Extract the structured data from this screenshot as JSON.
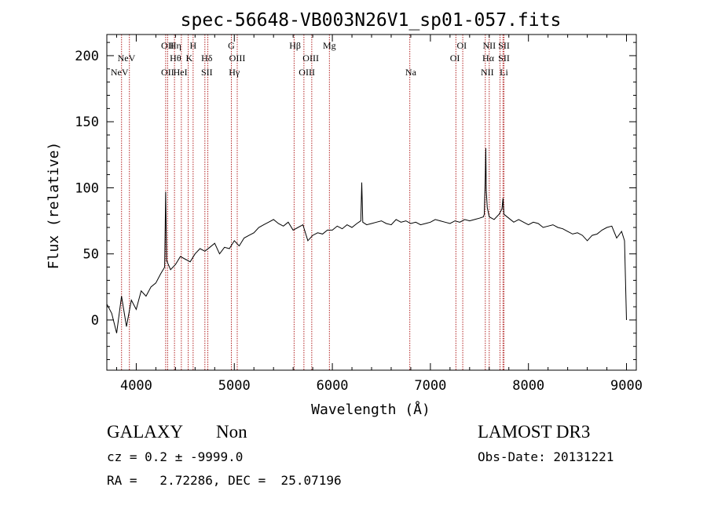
{
  "colors": {
    "spectrum": "#000000",
    "line_marker": "#b22222",
    "axis": "#000000",
    "background": "#ffffff"
  },
  "chart_data": {
    "type": "line",
    "title": "spec-56648-VB003N26V1_sp01-057.fits",
    "xlabel": "Wavelength (Å)",
    "ylabel": "Flux (relative)",
    "xlim": [
      3700,
      9100
    ],
    "ylim": [
      -38,
      216
    ],
    "xticks": [
      4000,
      5000,
      6000,
      7000,
      8000,
      9000
    ],
    "yticks": [
      0,
      50,
      100,
      150,
      200
    ],
    "series": [
      {
        "name": "flux",
        "x": [
          3700,
          3750,
          3800,
          3850,
          3900,
          3950,
          4000,
          4050,
          4100,
          4150,
          4200,
          4250,
          4290,
          4300,
          4310,
          4350,
          4400,
          4450,
          4500,
          4550,
          4600,
          4650,
          4700,
          4750,
          4800,
          4850,
          4900,
          4950,
          5000,
          5050,
          5100,
          5150,
          5200,
          5250,
          5300,
          5350,
          5400,
          5450,
          5500,
          5550,
          5600,
          5650,
          5700,
          5750,
          5800,
          5850,
          5900,
          5950,
          6000,
          6050,
          6100,
          6150,
          6200,
          6250,
          6290,
          6300,
          6310,
          6350,
          6400,
          6450,
          6500,
          6550,
          6600,
          6650,
          6700,
          6750,
          6800,
          6850,
          6900,
          6950,
          7000,
          7050,
          7100,
          7150,
          7200,
          7250,
          7300,
          7350,
          7400,
          7450,
          7500,
          7540,
          7550,
          7560,
          7565,
          7570,
          7580,
          7600,
          7650,
          7700,
          7730,
          7740,
          7750,
          7800,
          7850,
          7900,
          7950,
          8000,
          8050,
          8100,
          8150,
          8200,
          8250,
          8300,
          8350,
          8400,
          8450,
          8500,
          8550,
          8600,
          8650,
          8700,
          8750,
          8800,
          8850,
          8900,
          8950,
          8980,
          9000
        ],
        "values": [
          12,
          5,
          -10,
          18,
          -5,
          15,
          8,
          22,
          18,
          25,
          28,
          35,
          40,
          97,
          45,
          38,
          42,
          48,
          46,
          44,
          50,
          54,
          52,
          55,
          58,
          50,
          55,
          54,
          60,
          56,
          62,
          64,
          66,
          70,
          72,
          74,
          76,
          73,
          71,
          74,
          68,
          70,
          72,
          60,
          64,
          66,
          65,
          68,
          68,
          71,
          69,
          72,
          70,
          73,
          75,
          104,
          74,
          72,
          73,
          74,
          75,
          73,
          72,
          76,
          74,
          75,
          73,
          74,
          72,
          73,
          74,
          76,
          75,
          74,
          73,
          75,
          74,
          76,
          75,
          76,
          77,
          78,
          80,
          110,
          130,
          98,
          85,
          78,
          76,
          80,
          84,
          92,
          80,
          77,
          74,
          76,
          74,
          72,
          74,
          73,
          70,
          71,
          72,
          70,
          69,
          67,
          65,
          66,
          64,
          60,
          64,
          65,
          68,
          70,
          71,
          62,
          67,
          60,
          0
        ]
      }
    ],
    "lines_top_row": [
      {
        "label": "OII",
        "x": 4320
      },
      {
        "label": "Hη",
        "x": 4400
      },
      {
        "label": "H",
        "x": 4580
      },
      {
        "label": "G",
        "x": 4970
      },
      {
        "label": "Hβ",
        "x": 5620
      },
      {
        "label": "Mg",
        "x": 5970
      },
      {
        "label": "OI",
        "x": 7320
      },
      {
        "label": "NII",
        "x": 7600
      },
      {
        "label": "SII",
        "x": 7750
      }
    ],
    "lines_mid_row": [
      {
        "label": "NeV",
        "x": 3900
      },
      {
        "label": "Hθ",
        "x": 4400
      },
      {
        "label": "K",
        "x": 4540
      },
      {
        "label": "Hδ",
        "x": 4720
      },
      {
        "label": "OIII",
        "x": 5030
      },
      {
        "label": "OIII",
        "x": 5780
      },
      {
        "label": "OI",
        "x": 7250
      },
      {
        "label": "Hα",
        "x": 7590
      },
      {
        "label": "SII",
        "x": 7750
      }
    ],
    "lines_bottom_row": [
      {
        "label": "NeV",
        "x": 3830
      },
      {
        "label": "OII",
        "x": 4320
      },
      {
        "label": "HeI",
        "x": 4450
      },
      {
        "label": "SII",
        "x": 4720
      },
      {
        "label": "Hγ",
        "x": 5000
      },
      {
        "label": "OIII",
        "x": 5740
      },
      {
        "label": "Na",
        "x": 6800
      },
      {
        "label": "NII",
        "x": 7580
      },
      {
        "label": "Li",
        "x": 7750
      }
    ],
    "marker_lines_x": [
      3850,
      3930,
      4300,
      4320,
      4390,
      4460,
      4530,
      4580,
      4700,
      4730,
      4970,
      5030,
      5610,
      5710,
      5790,
      5970,
      6790,
      7260,
      7330,
      7560,
      7600,
      7710,
      7740,
      7750
    ]
  },
  "info": {
    "class_label": "GALAXY",
    "subclass_label": "Non",
    "survey_label": "LAMOST DR3",
    "cz_line": "cz = 0.2 ± -9999.0",
    "obs_date_line": "Obs-Date: 20131221",
    "coords_line": "RA =   2.72286, DEC =  25.07196"
  }
}
